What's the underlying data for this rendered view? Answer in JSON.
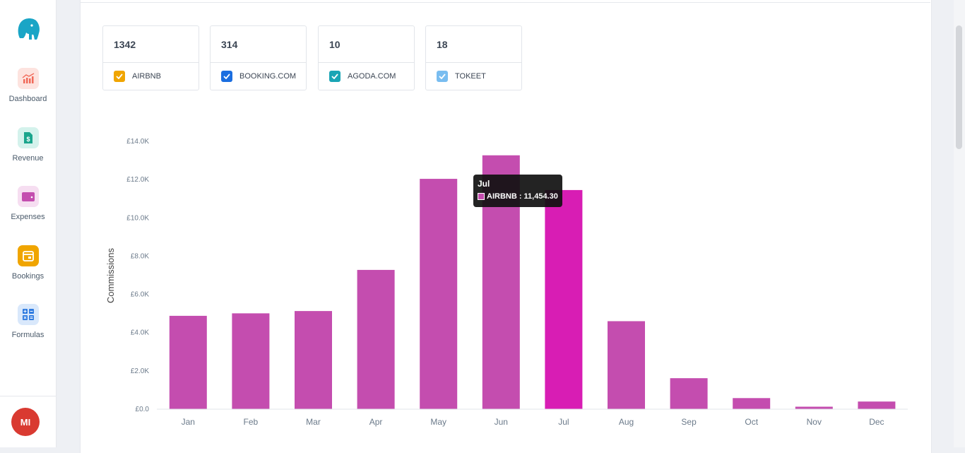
{
  "sidebar": {
    "items": [
      {
        "label": "Dashboard",
        "icon": "dashboard-chart-icon",
        "color": "#f16a5a",
        "bg": "#fde3df"
      },
      {
        "label": "Revenue",
        "icon": "revenue-document-icon",
        "color": "#1aa58c",
        "bg": "#d4f2ec"
      },
      {
        "label": "Expenses",
        "icon": "wallet-icon",
        "color": "#c44daf",
        "bg": "#f6def1"
      },
      {
        "label": "Bookings",
        "icon": "calendar-icon",
        "color": "#f0a500",
        "bg": "#f0a500"
      },
      {
        "label": "Formulas",
        "icon": "calculator-icon",
        "color": "#2f7be0",
        "bg": "#d9e8fb"
      }
    ],
    "avatar_initials": "MI"
  },
  "stats": [
    {
      "value": "1342",
      "label": "AIRBNB",
      "color": "#f0a500",
      "checked": true
    },
    {
      "value": "314",
      "label": "BOOKING.COM",
      "color": "#1b6ee0",
      "checked": true
    },
    {
      "value": "10",
      "label": "AGODA.COM",
      "color": "#1aa5b5",
      "checked": true
    },
    {
      "value": "18",
      "label": "TOKEET",
      "color": "#79bdf0",
      "checked": true
    }
  ],
  "chart_data": {
    "type": "bar",
    "categories": [
      "Jan",
      "Feb",
      "Mar",
      "Apr",
      "May",
      "Jun",
      "Jul",
      "Aug",
      "Sep",
      "Oct",
      "Nov",
      "Dec"
    ],
    "series": [
      {
        "name": "AIRBNB",
        "values": [
          4880,
          5010,
          5130,
          7280,
          12040,
          13270,
          11454.3,
          4600,
          1620,
          580,
          130,
          400
        ]
      }
    ],
    "ylabel": "Commissions",
    "ylim": [
      0,
      14000
    ],
    "y_ticks": [
      "£0.0",
      "£2.0K",
      "£4.0K",
      "£6.0K",
      "£8.0K",
      "£10.0K",
      "£12.0K",
      "£14.0K"
    ],
    "colors": {
      "bar": "#c44daf",
      "highlight": "#d81db4"
    },
    "highlight_index": 6,
    "tooltip": {
      "title": "Jul",
      "label": "AIRBNB : 11,454.30"
    }
  }
}
